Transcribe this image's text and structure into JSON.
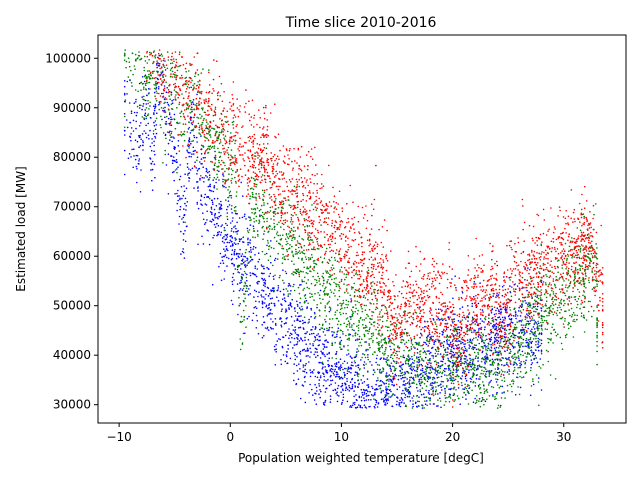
{
  "chart_data": {
    "type": "scatter",
    "title": "Time slice 2010-2016",
    "xlabel": "Population weighted temperature [degC]",
    "ylabel": "Estimated load [MW]",
    "xlim": [
      -11.9,
      35.6
    ],
    "ylim": [
      26300,
      104700
    ],
    "x_ticks": [
      -10,
      0,
      10,
      20,
      30
    ],
    "x_tick_labels": [
      "−10",
      "0",
      "10",
      "20",
      "30"
    ],
    "y_ticks": [
      30000,
      40000,
      50000,
      60000,
      70000,
      80000,
      90000,
      100000
    ],
    "y_tick_labels": [
      "30000",
      "40000",
      "50000",
      "60000",
      "70000",
      "80000",
      "90000",
      "100000"
    ],
    "grid": false,
    "legend": "none",
    "marker": "point",
    "series": [
      {
        "color": "#0000ff",
        "x_range": [
          -9.5,
          28.0
        ],
        "points": [
          [
            -9.0,
            87000
          ],
          [
            -8.2,
            82000
          ],
          [
            -7.5,
            92500
          ],
          [
            -7.0,
            77500
          ],
          [
            -6.5,
            99000
          ],
          [
            -5.5,
            85000
          ],
          [
            -4.8,
            79000
          ],
          [
            -4.2,
            64500
          ],
          [
            -3.5,
            88000
          ],
          [
            -3.0,
            75000
          ],
          [
            -2.0,
            72000
          ],
          [
            -1.0,
            68000
          ],
          [
            0.0,
            64000
          ],
          [
            1.0,
            60000
          ],
          [
            2.0,
            56500
          ],
          [
            3.0,
            53000
          ],
          [
            4.0,
            50000
          ],
          [
            5.0,
            46500
          ],
          [
            6.0,
            43500
          ],
          [
            7.0,
            41000
          ],
          [
            8.0,
            38500
          ],
          [
            9.0,
            37000
          ],
          [
            10.0,
            35500
          ],
          [
            11.0,
            34000
          ],
          [
            12.0,
            33000
          ],
          [
            13.0,
            32000
          ],
          [
            14.0,
            31000
          ],
          [
            15.0,
            31500
          ],
          [
            16.0,
            33000
          ],
          [
            17.0,
            35000
          ],
          [
            18.0,
            37500
          ],
          [
            20.0,
            40000
          ],
          [
            22.0,
            41500
          ],
          [
            24.0,
            43000
          ],
          [
            26.0,
            44500
          ],
          [
            28.0,
            46000
          ]
        ]
      },
      {
        "color": "#008000",
        "x_range": [
          -9.5,
          33.0
        ],
        "points": [
          [
            -9.5,
            100500
          ],
          [
            -8.8,
            101000
          ],
          [
            -8.5,
            99500
          ],
          [
            -7.5,
            95000
          ],
          [
            -7.0,
            96000
          ],
          [
            -3.5,
            91000
          ],
          [
            -2.5,
            87000
          ],
          [
            -1.0,
            81000
          ],
          [
            0.5,
            77000
          ],
          [
            0.8,
            50000
          ],
          [
            1.2,
            51000
          ],
          [
            2.0,
            72000
          ],
          [
            4.0,
            66000
          ],
          [
            6.0,
            60500
          ],
          [
            8.0,
            55000
          ],
          [
            10.0,
            50000
          ],
          [
            12.0,
            45500
          ],
          [
            14.0,
            41500
          ],
          [
            16.0,
            39000
          ],
          [
            18.0,
            37000
          ],
          [
            20.0,
            36500
          ],
          [
            22.0,
            37500
          ],
          [
            24.0,
            40000
          ],
          [
            26.0,
            43500
          ],
          [
            28.0,
            48000
          ],
          [
            30.0,
            51000
          ],
          [
            32.0,
            56000
          ],
          [
            33.0,
            59500
          ],
          [
            33.0,
            47500
          ],
          [
            31.0,
            54000
          ]
        ]
      },
      {
        "color": "#ff0000",
        "x_range": [
          -7.5,
          33.5
        ],
        "points": [
          [
            -7.0,
            100500
          ],
          [
            -6.0,
            98500
          ],
          [
            -4.5,
            93500
          ],
          [
            -3.0,
            90000
          ],
          [
            -2.0,
            88500
          ],
          [
            -1.0,
            86000
          ],
          [
            0.0,
            84000
          ],
          [
            2.0,
            80500
          ],
          [
            4.0,
            76000
          ],
          [
            6.0,
            72000
          ],
          [
            8.0,
            68000
          ],
          [
            10.0,
            63500
          ],
          [
            12.0,
            58500
          ],
          [
            14.0,
            54000
          ],
          [
            16.0,
            51000
          ],
          [
            18.0,
            49500
          ],
          [
            20.0,
            49000
          ],
          [
            22.0,
            50500
          ],
          [
            24.0,
            52500
          ],
          [
            26.0,
            54500
          ],
          [
            28.0,
            57500
          ],
          [
            30.0,
            60500
          ],
          [
            32.5,
            62000
          ],
          [
            33.5,
            49000
          ],
          [
            24.0,
            45000
          ],
          [
            20.0,
            42000
          ],
          [
            15.0,
            44000
          ]
        ]
      }
    ]
  }
}
